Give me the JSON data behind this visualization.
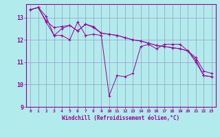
{
  "title": "",
  "xlabel": "Windchill (Refroidissement éolien,°C)",
  "ylabel": "",
  "bg_color": "#b2ebeb",
  "line_color": "#990099",
  "grid_color": "#9999cc",
  "xlim": [
    -0.5,
    23.5
  ],
  "ylim": [
    9,
    13.6
  ],
  "yticks": [
    9,
    10,
    11,
    12,
    13
  ],
  "xticks": [
    0,
    1,
    2,
    3,
    4,
    5,
    6,
    7,
    8,
    9,
    10,
    11,
    12,
    13,
    14,
    15,
    16,
    17,
    18,
    19,
    20,
    21,
    22,
    23
  ],
  "series1": {
    "x": [
      0,
      1,
      2,
      3,
      4,
      5,
      6,
      7,
      8,
      9,
      10,
      11,
      12,
      13,
      14,
      15,
      16,
      17,
      18,
      19,
      20,
      21,
      22,
      23
    ],
    "y": [
      13.35,
      13.45,
      13.05,
      12.2,
      12.2,
      12.0,
      12.8,
      12.2,
      12.25,
      12.2,
      9.5,
      10.4,
      10.35,
      10.5,
      11.7,
      11.8,
      11.6,
      11.8,
      11.8,
      11.8,
      11.5,
      11.1,
      10.4,
      10.35
    ]
  },
  "series2": {
    "x": [
      0,
      1,
      2,
      3,
      4,
      5,
      6,
      7,
      8,
      9,
      10,
      11,
      12,
      13,
      14,
      15,
      16,
      17,
      18,
      19,
      20,
      21,
      22,
      23
    ],
    "y": [
      13.35,
      13.45,
      12.8,
      12.2,
      12.5,
      12.65,
      12.4,
      12.7,
      12.55,
      12.3,
      12.25,
      12.2,
      12.1,
      12.0,
      11.95,
      11.85,
      11.75,
      11.7,
      11.65,
      11.6,
      11.5,
      11.0,
      10.4,
      10.35
    ]
  },
  "series3": {
    "x": [
      0,
      1,
      2,
      3,
      4,
      5,
      6,
      7,
      8,
      9,
      10,
      11,
      12,
      13,
      14,
      15,
      16,
      17,
      18,
      19,
      20,
      21,
      22,
      23
    ],
    "y": [
      13.35,
      13.45,
      12.85,
      12.55,
      12.6,
      12.65,
      12.4,
      12.7,
      12.6,
      12.3,
      12.25,
      12.2,
      12.1,
      12.0,
      11.95,
      11.85,
      11.75,
      11.7,
      11.65,
      11.6,
      11.5,
      11.2,
      10.6,
      10.5
    ]
  }
}
